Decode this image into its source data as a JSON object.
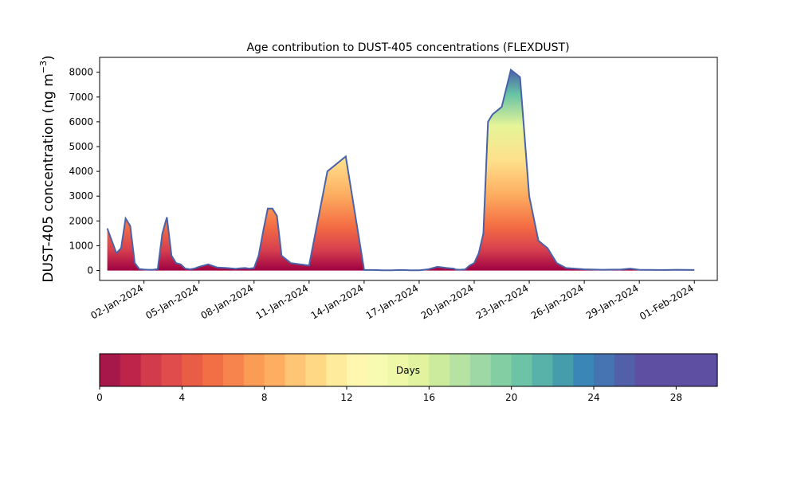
{
  "chart_data": {
    "type": "area",
    "title": "Age contribution to DUST-405 concentrations (FLEXDUST)",
    "ylabel": "DUST-405 concentration (ng m",
    "ylabel_sup": "−3",
    "ylabel_close": ")",
    "xlabel": "",
    "ylim": [
      -400,
      8600
    ],
    "yticks": [
      0,
      1000,
      2000,
      3000,
      4000,
      5000,
      6000,
      7000,
      8000
    ],
    "xlim": [
      "2023-12-30T14:00",
      "2024-02-02T06:00"
    ],
    "xticks": [
      "02-Jan-2024",
      "05-Jan-2024",
      "08-Jan-2024",
      "11-Jan-2024",
      "14-Jan-2024",
      "17-Jan-2024",
      "20-Jan-2024",
      "23-Jan-2024",
      "26-Jan-2024",
      "29-Jan-2024",
      "01-Feb-2024"
    ],
    "grid": false,
    "total_line_color": "#4a62a8",
    "total": {
      "x": [
        "2023-12-31T00:00",
        "2023-12-31T06:00",
        "2023-12-31T12:00",
        "2023-12-31T18:00",
        "2024-01-01T00:00",
        "2024-01-01T06:00",
        "2024-01-01T12:00",
        "2024-01-01T18:00",
        "2024-01-02T00:00",
        "2024-01-02T06:00",
        "2024-01-02T12:00",
        "2024-01-02T18:00",
        "2024-01-03T00:00",
        "2024-01-03T06:00",
        "2024-01-03T12:00",
        "2024-01-03T18:00",
        "2024-01-04T00:00",
        "2024-01-04T06:00",
        "2024-01-04T12:00",
        "2024-01-04T18:00",
        "2024-01-05T00:00",
        "2024-01-05T12:00",
        "2024-01-06T00:00",
        "2024-01-06T12:00",
        "2024-01-07T00:00",
        "2024-01-07T06:00",
        "2024-01-07T12:00",
        "2024-01-07T18:00",
        "2024-01-08T00:00",
        "2024-01-08T06:00",
        "2024-01-08T12:00",
        "2024-01-08T18:00",
        "2024-01-09T00:00",
        "2024-01-09T06:00",
        "2024-01-09T12:00",
        "2024-01-10T00:00",
        "2024-01-11T00:00",
        "2024-01-12T00:00",
        "2024-01-13T00:00",
        "2024-01-14T00:00",
        "2024-01-14T12:00",
        "2024-01-15T00:00",
        "2024-01-15T12:00",
        "2024-01-16T00:00",
        "2024-01-16T12:00",
        "2024-01-17T00:00",
        "2024-01-17T12:00",
        "2024-01-18T00:00",
        "2024-01-18T12:00",
        "2024-01-18T21:00",
        "2024-01-19T00:00",
        "2024-01-19T06:00",
        "2024-01-19T09:00",
        "2024-01-19T12:00",
        "2024-01-19T18:00",
        "2024-01-20T00:00",
        "2024-01-20T06:00",
        "2024-01-20T12:00",
        "2024-01-20T18:00",
        "2024-01-21T00:00",
        "2024-01-21T12:00",
        "2024-01-22T00:00",
        "2024-01-22T12:00",
        "2024-01-23T00:00",
        "2024-01-23T12:00",
        "2024-01-24T00:00",
        "2024-01-24T06:00",
        "2024-01-24T12:00",
        "2024-01-25T00:00",
        "2024-01-26T00:00",
        "2024-01-27T00:00",
        "2024-01-28T00:00",
        "2024-01-28T12:00",
        "2024-01-29T00:00",
        "2024-01-30T00:00",
        "2024-01-30T12:00",
        "2024-01-31T00:00",
        "2024-02-01T00:00"
      ],
      "y": [
        1700,
        1200,
        700,
        900,
        2100,
        1800,
        300,
        60,
        40,
        30,
        30,
        60,
        1500,
        2150,
        600,
        300,
        250,
        80,
        50,
        80,
        150,
        250,
        120,
        100,
        70,
        90,
        100,
        80,
        100,
        600,
        1600,
        2500,
        2500,
        2200,
        600,
        300,
        200,
        4000,
        4600,
        20,
        20,
        10,
        10,
        20,
        10,
        10,
        50,
        150,
        100,
        80,
        40,
        30,
        40,
        40,
        200,
        300,
        700,
        1500,
        6000,
        6300,
        6600,
        8100,
        7800,
        3000,
        1200,
        900,
        600,
        300,
        100,
        50,
        30,
        40,
        80,
        30,
        20,
        20,
        30,
        20
      ]
    }
  },
  "colorbar": {
    "label": "Days",
    "range": [
      0,
      30
    ],
    "ticks": [
      "0",
      "4",
      "8",
      "12",
      "16",
      "20",
      "24",
      "28"
    ],
    "colors": [
      "#a7184a",
      "#be2349",
      "#d23c4a",
      "#df4c4b",
      "#e95d47",
      "#f26e44",
      "#f7844d",
      "#fa9b56",
      "#fdae61",
      "#fec574",
      "#fed885",
      "#feeb9b",
      "#fff6b0",
      "#f7fbb1",
      "#eef8a6",
      "#e1f39e",
      "#cdeb9d",
      "#b6e2a2",
      "#9ed8a4",
      "#84cea4",
      "#6cc3a5",
      "#58b2aa",
      "#459dac",
      "#3a87b7",
      "#4673b2",
      "#5260a8",
      "#5e4fa2",
      "#5e4fa2",
      "#5e4fa2",
      "#5e4fa2"
    ]
  }
}
